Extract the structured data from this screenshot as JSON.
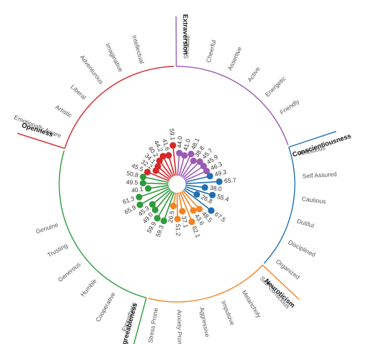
{
  "chart_data": {
    "type": "radial-lollipop",
    "domains": [
      {
        "name": "Extraversion",
        "color": "#9b59b6",
        "facets": [
          {
            "label": "Sociable",
            "value": 44.0
          },
          {
            "label": "Cheerful",
            "value": 41.0
          },
          {
            "label": "Assertive",
            "value": 48.1
          },
          {
            "label": "Active",
            "value": 38.8
          },
          {
            "label": "Energetic",
            "value": 45.7
          },
          {
            "label": "Friendly",
            "value": 45.9
          }
        ]
      },
      {
        "name": "Conscientiousness",
        "color": "#1f6fb0",
        "facets": [
          {
            "label": "Ambitious",
            "value": 49.3
          },
          {
            "label": "Self Assured",
            "value": 65.7
          },
          {
            "label": "Cautious",
            "value": 38.0
          },
          {
            "label": "Dutiful",
            "value": 55.4
          },
          {
            "label": "Disciplined",
            "value": 26.8
          },
          {
            "label": "Organized",
            "value": 67.5
          }
        ]
      },
      {
        "name": "Neuroticism",
        "color": "#f58220",
        "facets": [
          {
            "label": "Self Conscious",
            "value": 48.5
          },
          {
            "label": "Melancholy",
            "value": 43.6
          },
          {
            "label": "Impulsive",
            "value": 62.1
          },
          {
            "label": "Aggressive",
            "value": 37.1
          },
          {
            "label": "Anxiety Prone",
            "value": 51.2
          },
          {
            "label": "Stress Prone",
            "value": 26.5
          }
        ]
      },
      {
        "name": "Agreeableness",
        "color": "#2e9b3a",
        "facets": [
          {
            "label": "Empathetic",
            "value": 59.3
          },
          {
            "label": "Cooperative",
            "value": 59.9
          },
          {
            "label": "Humble",
            "value": 49.0
          },
          {
            "label": "Generous",
            "value": 45.3
          },
          {
            "label": "Trusting",
            "value": 65.9
          },
          {
            "label": "Genuine",
            "value": 61.3
          }
        ]
      },
      {
        "name": "Openness",
        "color": "#d62728",
        "facets": [
          {
            "label": "Emotionally Aware",
            "value": 45.5
          },
          {
            "label": "Artistic",
            "value": 32.2
          },
          {
            "label": "Liberal",
            "value": 34.1
          },
          {
            "label": "Adventurous",
            "value": 40.2
          },
          {
            "label": "Imaginative",
            "value": 44.2
          },
          {
            "label": "Intellectual",
            "value": 41.6
          }
        ]
      }
    ],
    "extra_values_note": "",
    "green_values_order": [
      40.1,
      49.5,
      50.8
    ],
    "extraversion_last": 46.3,
    "openness_last": 59.1,
    "value_range": [
      0,
      100
    ]
  }
}
